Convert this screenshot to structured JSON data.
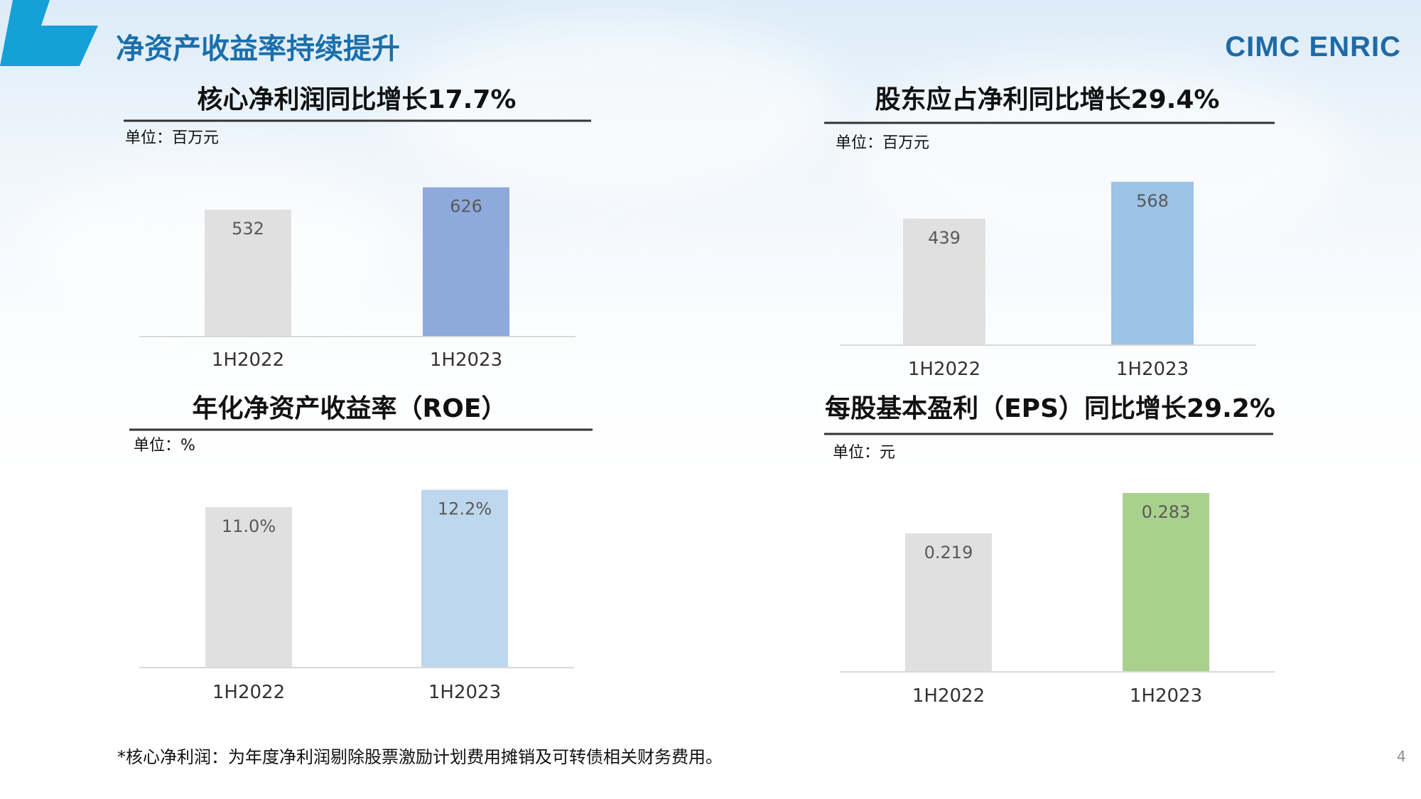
{
  "header": {
    "title": "净资产收益率持续提升",
    "logo_text": "CIMC ENRIC",
    "accent_color": "#16a0d8",
    "title_color": "#1b6fab"
  },
  "chart_data": [
    {
      "type": "bar",
      "title": "核心净利润同比增长17.7%",
      "unit": "单位：百万元",
      "categories": [
        "1H2022",
        "1H2023"
      ],
      "values": [
        532,
        626
      ],
      "value_labels": [
        "532",
        "626"
      ],
      "colors": [
        "#e0e0e0",
        "#8eaadc"
      ],
      "ylim": [
        0,
        700
      ],
      "grid": false,
      "legend": "none"
    },
    {
      "type": "bar",
      "title": "股东应占净利同比增长29.4%",
      "unit": "单位：百万元",
      "categories": [
        "1H2022",
        "1H2023"
      ],
      "values": [
        439,
        568
      ],
      "value_labels": [
        "439",
        "568"
      ],
      "colors": [
        "#e0e0e0",
        "#9dc3e6"
      ],
      "ylim": [
        0,
        600
      ],
      "grid": false,
      "legend": "none"
    },
    {
      "type": "bar",
      "title": "年化净资产收益率（ROE）",
      "unit": "单位：%",
      "categories": [
        "1H2022",
        "1H2023"
      ],
      "values": [
        11.0,
        12.2
      ],
      "value_labels": [
        "11.0%",
        "12.2%"
      ],
      "colors": [
        "#e0e0e0",
        "#bdd7ee"
      ],
      "ylim": [
        0,
        13.6
      ],
      "grid": false,
      "legend": "none"
    },
    {
      "type": "bar",
      "title": "每股基本盈利（EPS）同比增长29.2%",
      "unit": "单位：元",
      "categories": [
        "1H2022",
        "1H2023"
      ],
      "values": [
        0.219,
        0.283
      ],
      "value_labels": [
        "0.219",
        "0.283"
      ],
      "colors": [
        "#e0e0e0",
        "#a9d18e"
      ],
      "ylim": [
        0,
        0.3
      ],
      "grid": false,
      "legend": "none"
    }
  ],
  "footnote": "*核心净利润：为年度净利润剔除股票激励计划费用摊销及可转债相关财务费用。",
  "page_number": "4"
}
